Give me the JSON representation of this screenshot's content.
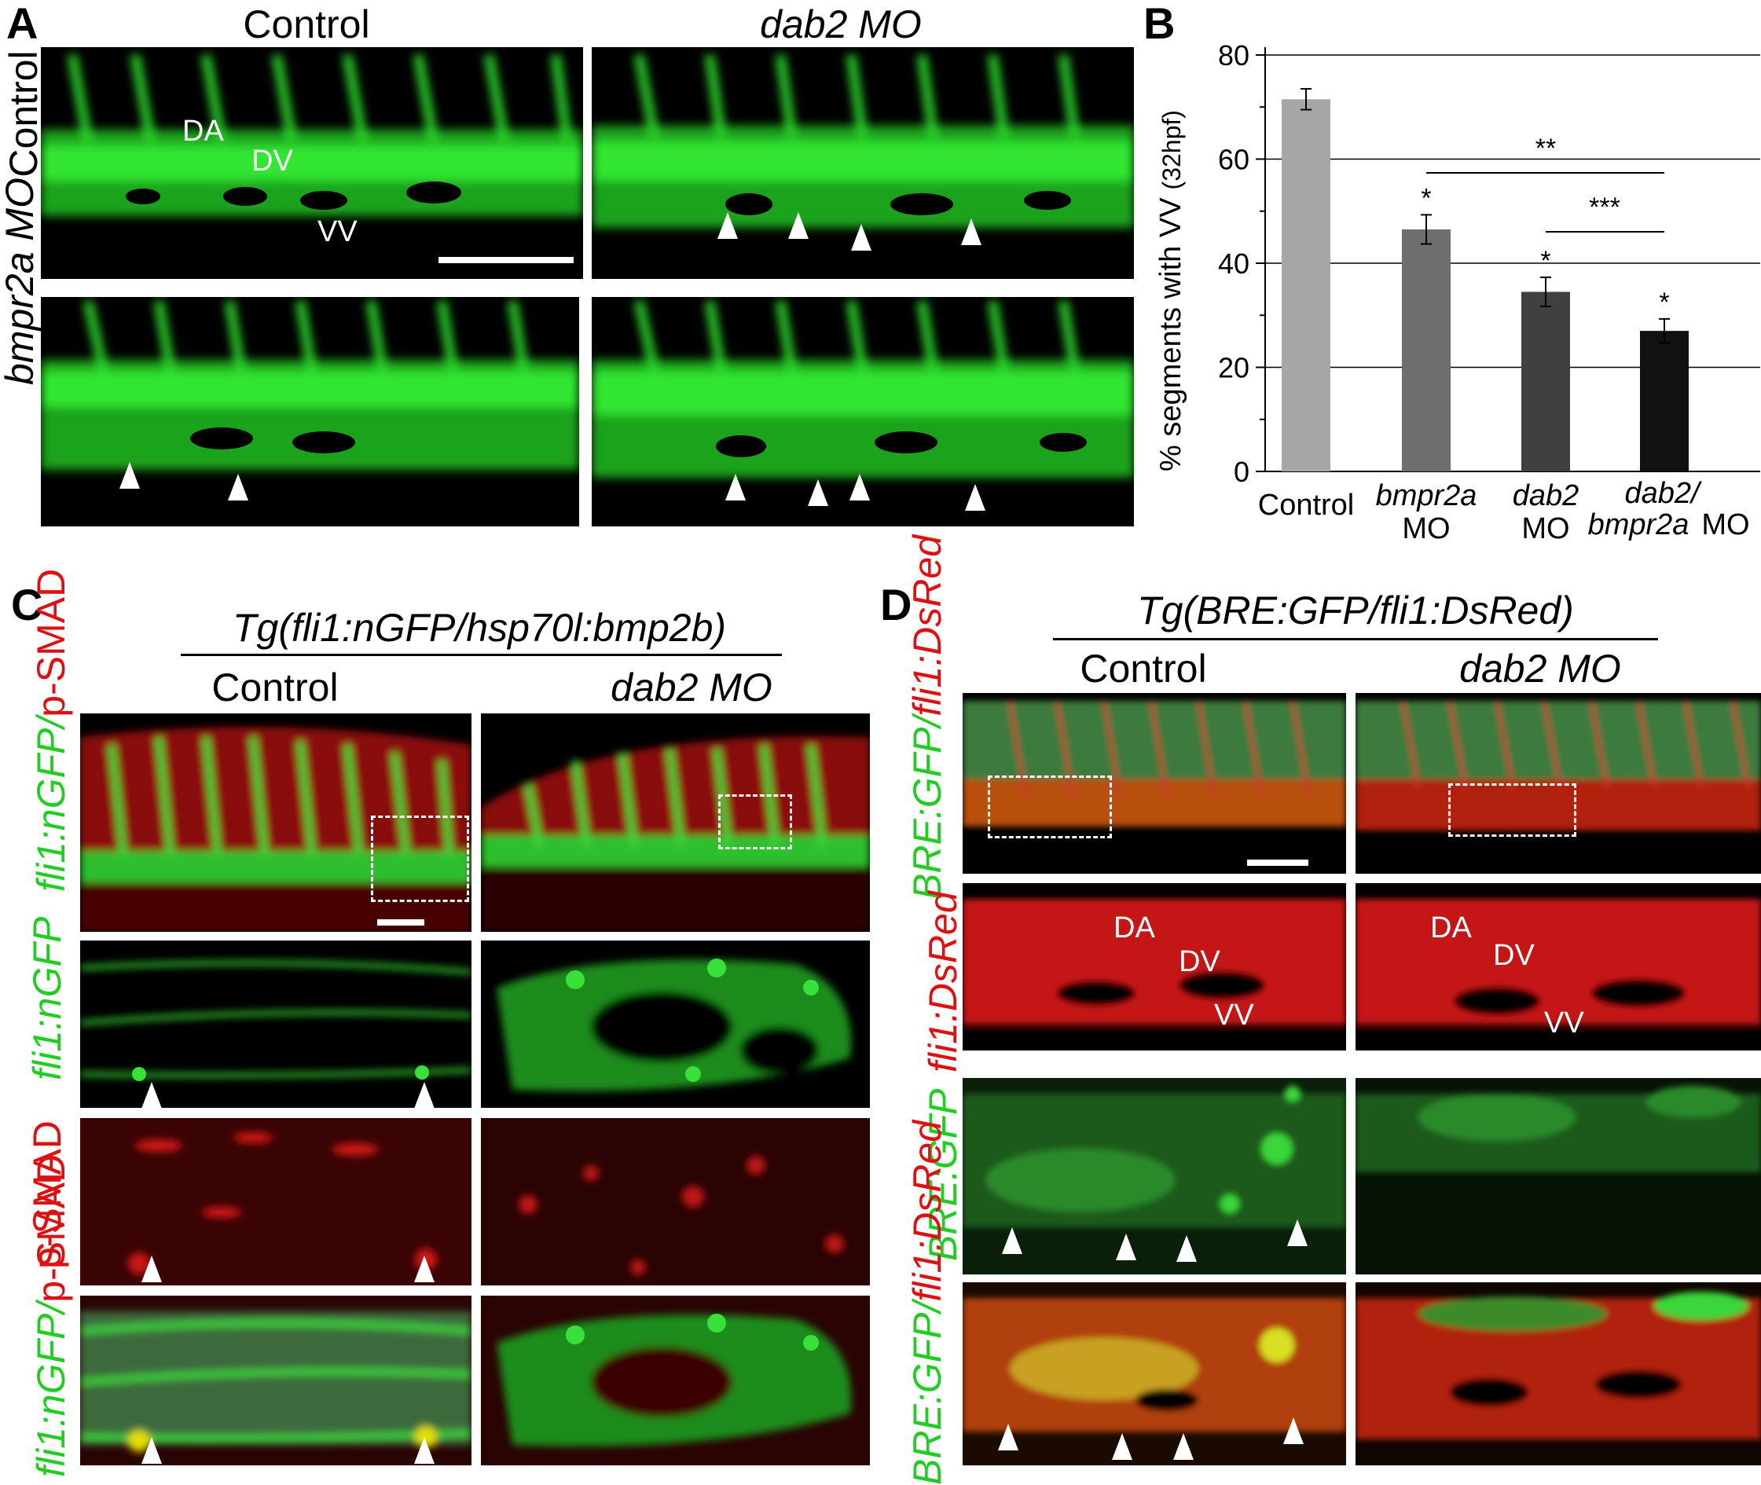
{
  "panelA": {
    "letter": "A",
    "col_control": "Control",
    "col_dab2": "dab2 MO",
    "row_control": "Control",
    "row_bmpr2a": "bmpr2a MO",
    "labels": {
      "da": "DA",
      "dv": "DV",
      "vv": "VV"
    }
  },
  "panelB": {
    "letter": "B",
    "ylabel": "% segments with VV",
    "ylabel_sub": "(32hpf)",
    "yticks": [
      "0",
      "20",
      "40",
      "60",
      "80"
    ],
    "cat_control": "Control",
    "cat_bmpr2a_1": "bmpr2a",
    "cat_bmpr2a_2": "MO",
    "cat_dab2_1": "dab2",
    "cat_dab2_2": "MO",
    "cat_dbl_1": "dab2/",
    "cat_dbl_2": "bmpr2a",
    "cat_dbl_3": "MO",
    "sig_double": "**",
    "sig_triple": "***",
    "sig_single": "*"
  },
  "chart_data": {
    "type": "bar",
    "categories": [
      "Control",
      "bmpr2a MO",
      "dab2 MO",
      "dab2/bmpr2a MO"
    ],
    "values": [
      71.5,
      46.5,
      34.5,
      27.0
    ],
    "errors": [
      2.0,
      2.8,
      2.8,
      2.3
    ],
    "colors": [
      "#a6a6a6",
      "#6e6e6e",
      "#404040",
      "#111111"
    ],
    "ylabel": "% segments with VV (32hpf)",
    "ylim": [
      0,
      80
    ],
    "grid": true,
    "annotations": [
      {
        "bar": 1,
        "text": "*"
      },
      {
        "bar": 2,
        "text": "*"
      },
      {
        "bar": 3,
        "text": "*"
      },
      {
        "between": [
          1,
          3
        ],
        "text": "**"
      },
      {
        "between": [
          2,
          3
        ],
        "text": "***"
      }
    ]
  },
  "panelC": {
    "letter": "C",
    "title": "Tg(fli1:nGFP/hsp70l:bmp2b)",
    "col_control": "Control",
    "col_dab2": "dab2 MO",
    "row1_green": "fli1:nGFP/",
    "row1_red": "p-SMAD",
    "row2_green": "fli1:nGFP",
    "row3_red": "p-SMAD",
    "row4_green": "fli1:nGFP/",
    "row4_red": "p-SMAD"
  },
  "panelD": {
    "letter": "D",
    "title": "Tg(BRE:GFP/fli1:DsRed)",
    "col_control": "Control",
    "col_dab2": "dab2 MO",
    "row1_green": "BRE:GFP/",
    "row1_red": "fli1:DsRed",
    "row2_red": "fli1:DsRed",
    "row3_green": "BRE:GFP",
    "row4_green": "BRE:GFP/",
    "row4_red": "fli1:DsRed",
    "labels": {
      "da": "DA",
      "dv": "DV",
      "vv": "VV"
    }
  }
}
